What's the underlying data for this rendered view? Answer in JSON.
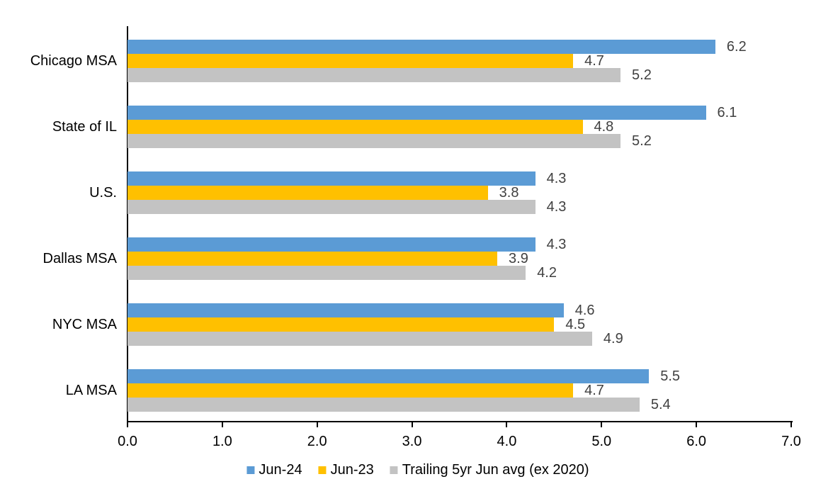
{
  "chart_data": {
    "type": "bar",
    "orientation": "horizontal",
    "title": "",
    "xlabel": "",
    "ylabel": "",
    "grid": false,
    "legend_position": "bottom",
    "categories": [
      "Chicago MSA",
      "State of IL",
      "U.S.",
      "Dallas MSA",
      "NYC MSA",
      "LA MSA"
    ],
    "series": [
      {
        "name": "Jun-24",
        "color": "#5B9BD5",
        "values": [
          6.2,
          6.1,
          4.3,
          4.3,
          4.6,
          5.5
        ]
      },
      {
        "name": "Jun-23",
        "color": "#FFC000",
        "values": [
          4.7,
          4.8,
          3.8,
          3.9,
          4.5,
          4.7
        ]
      },
      {
        "name": "Trailing 5yr Jun avg (ex 2020)",
        "color": "#C3C3C3",
        "values": [
          5.2,
          5.2,
          4.3,
          4.2,
          4.9,
          5.4
        ]
      }
    ],
    "value_labels": [
      [
        "6.2",
        "6.1",
        "4.3",
        "4.3",
        "4.6",
        "5.5"
      ],
      [
        "4.7",
        "4.8",
        "3.8",
        "3.9",
        "4.5",
        "4.7"
      ],
      [
        "5.2",
        "5.2",
        "4.3",
        "4.2",
        "4.9",
        "5.4"
      ]
    ],
    "xlim": [
      0,
      7
    ],
    "x_ticks": [
      "0.0",
      "1.0",
      "2.0",
      "3.0",
      "4.0",
      "5.0",
      "6.0",
      "7.0"
    ],
    "colors": {
      "axis": "#000000",
      "value_label": "#404040",
      "category_label": "#000000",
      "tick_label": "#000000",
      "background": "#FFFFFF"
    }
  }
}
